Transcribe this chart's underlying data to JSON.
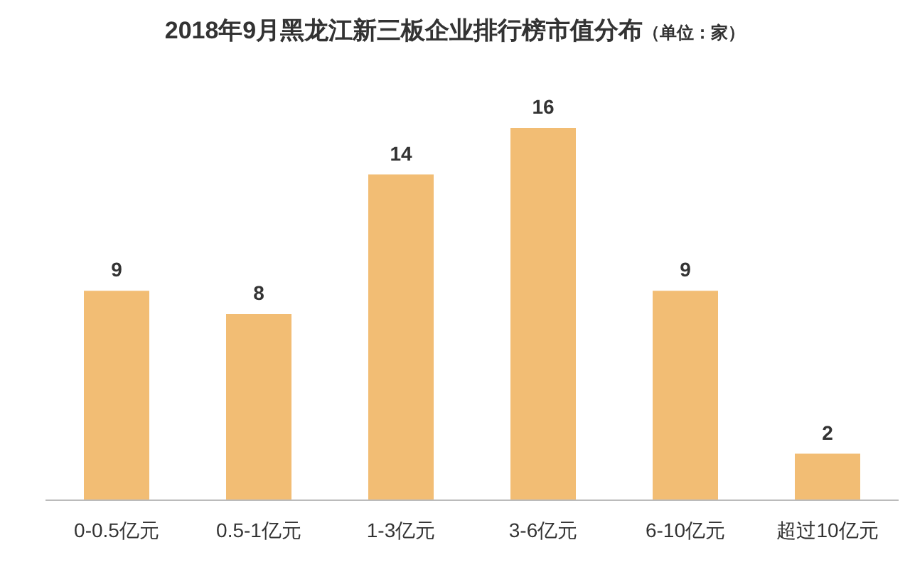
{
  "chart_data": {
    "type": "bar",
    "title": "2018年9月黑龙江新三板企业排行榜市值分布",
    "subtitle": "（单位：家）",
    "categories": [
      "0-0.5亿元",
      "0.5-1亿元",
      "1-3亿元",
      "3-6亿元",
      "6-10亿元",
      "超过10亿元"
    ],
    "values": [
      9,
      8,
      14,
      16,
      9,
      2
    ],
    "color": "#f2bd74",
    "data_labels": true
  }
}
